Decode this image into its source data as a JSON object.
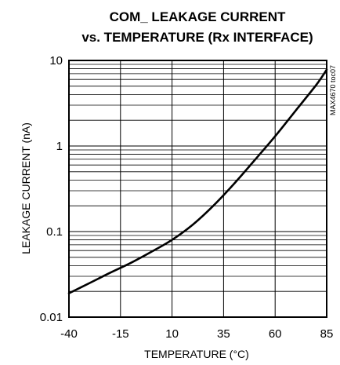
{
  "chart_data": {
    "type": "line",
    "title_line1": "COM_ LEAKAGE CURRENT",
    "title_line2": "vs. TEMPERATURE (Rx INTERFACE)",
    "xlabel": "TEMPERATURE (°C)",
    "ylabel": "LEAKAGE CURRENT (nA)",
    "side_note": "MAX4670 toc07",
    "xlim": [
      -40,
      85
    ],
    "ylim": [
      0.01,
      10
    ],
    "yscale": "log",
    "grid": true,
    "x_ticks": [
      -40,
      -15,
      10,
      35,
      60,
      85
    ],
    "x_tick_labels": [
      "-40",
      "-15",
      "10",
      "35",
      "60",
      "85"
    ],
    "y_ticks": [
      0.01,
      0.1,
      1,
      10
    ],
    "y_tick_labels": [
      "0.01",
      "0.1",
      "1",
      "10"
    ],
    "series": [
      {
        "x": [
          -40,
          -30,
          -20,
          -10,
          0,
          10,
          20,
          30,
          40,
          50,
          60,
          70,
          80,
          85
        ],
        "y": [
          0.019,
          0.025,
          0.033,
          0.043,
          0.058,
          0.08,
          0.12,
          0.2,
          0.36,
          0.68,
          1.3,
          2.6,
          5.2,
          7.8
        ]
      }
    ]
  }
}
